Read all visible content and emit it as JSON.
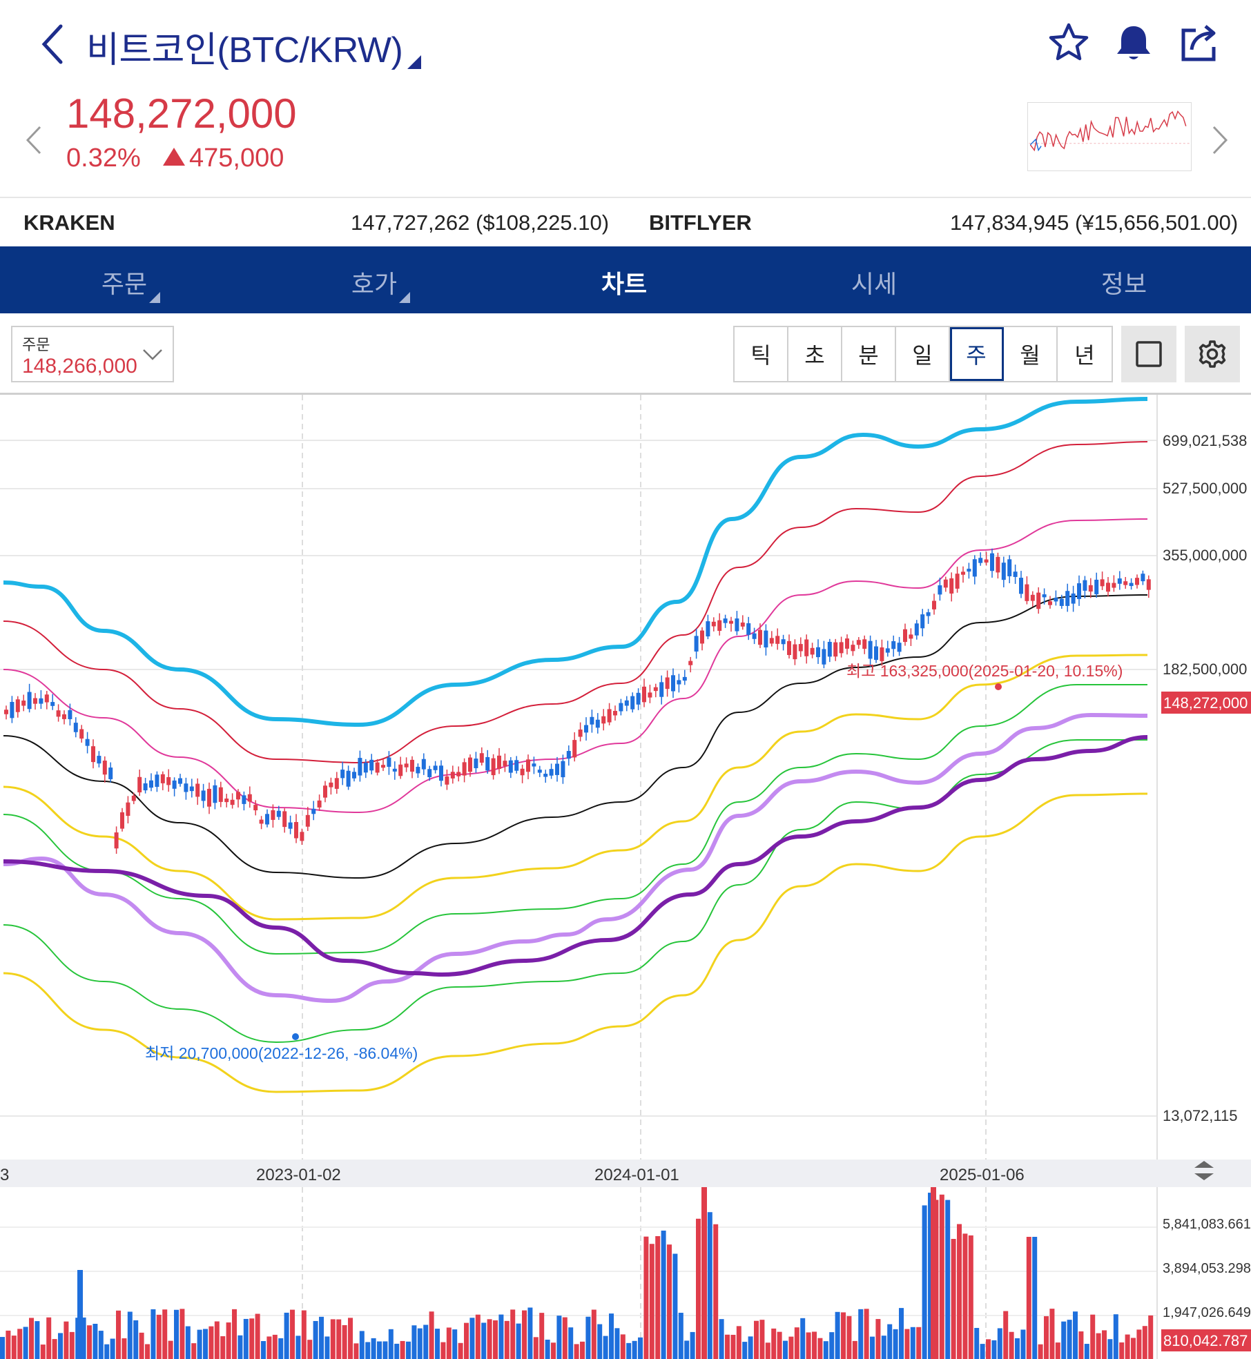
{
  "header": {
    "title": "비트코인(BTC/KRW)",
    "icons": [
      "back-chevron-icon",
      "star-icon",
      "bell-icon",
      "share-icon"
    ]
  },
  "ticker": {
    "price": "148,272,000",
    "change_pct": "0.32%",
    "change_abs": "475,000",
    "direction": "up",
    "up_color": "#d63a47"
  },
  "exchanges": [
    {
      "name": "KRAKEN",
      "value": "147,727,262 ($108,225.10)"
    },
    {
      "name": "BITFLYER",
      "value": "147,834,945 (¥15,656,501.00)"
    }
  ],
  "tabs": [
    {
      "label": "주문",
      "has_dropdown": true
    },
    {
      "label": "호가",
      "has_dropdown": true
    },
    {
      "label": "차트",
      "active": true
    },
    {
      "label": "시세"
    },
    {
      "label": "정보"
    }
  ],
  "order_select": {
    "label": "주문",
    "value": "148,266,000"
  },
  "timeframes": [
    {
      "label": "틱"
    },
    {
      "label": "초"
    },
    {
      "label": "분"
    },
    {
      "label": "일"
    },
    {
      "label": "주",
      "active": true
    },
    {
      "label": "월"
    },
    {
      "label": "년"
    }
  ],
  "chart_data": {
    "type": "candlestick",
    "interval": "weekly",
    "y_scale": "log",
    "price_axis_labels": [
      "699,021,538",
      "527,500,000",
      "355,000,000",
      "182,500,000",
      "13,072,115"
    ],
    "current_price_label": "148,272,000",
    "x_axis_labels": [
      "3",
      "2023-01-02",
      "2024-01-01",
      "2025-01-06"
    ],
    "annotations": {
      "high": "최고 163,325,000(2025-01-20, 10.15%)",
      "low": "최저 20,700,000(2022-12-26, -86.04%)"
    },
    "volume_axis_labels": [
      "5,841,083.661",
      "3,894,053.298",
      "1,947,026.649"
    ],
    "current_volume_label": "810,042.787",
    "colors": {
      "up": "#e03d4b",
      "down": "#1e6fdc",
      "band_outer": "#1db4e6",
      "ma_fast": "#c38af0",
      "ma_slow": "#7a1fa8"
    }
  }
}
